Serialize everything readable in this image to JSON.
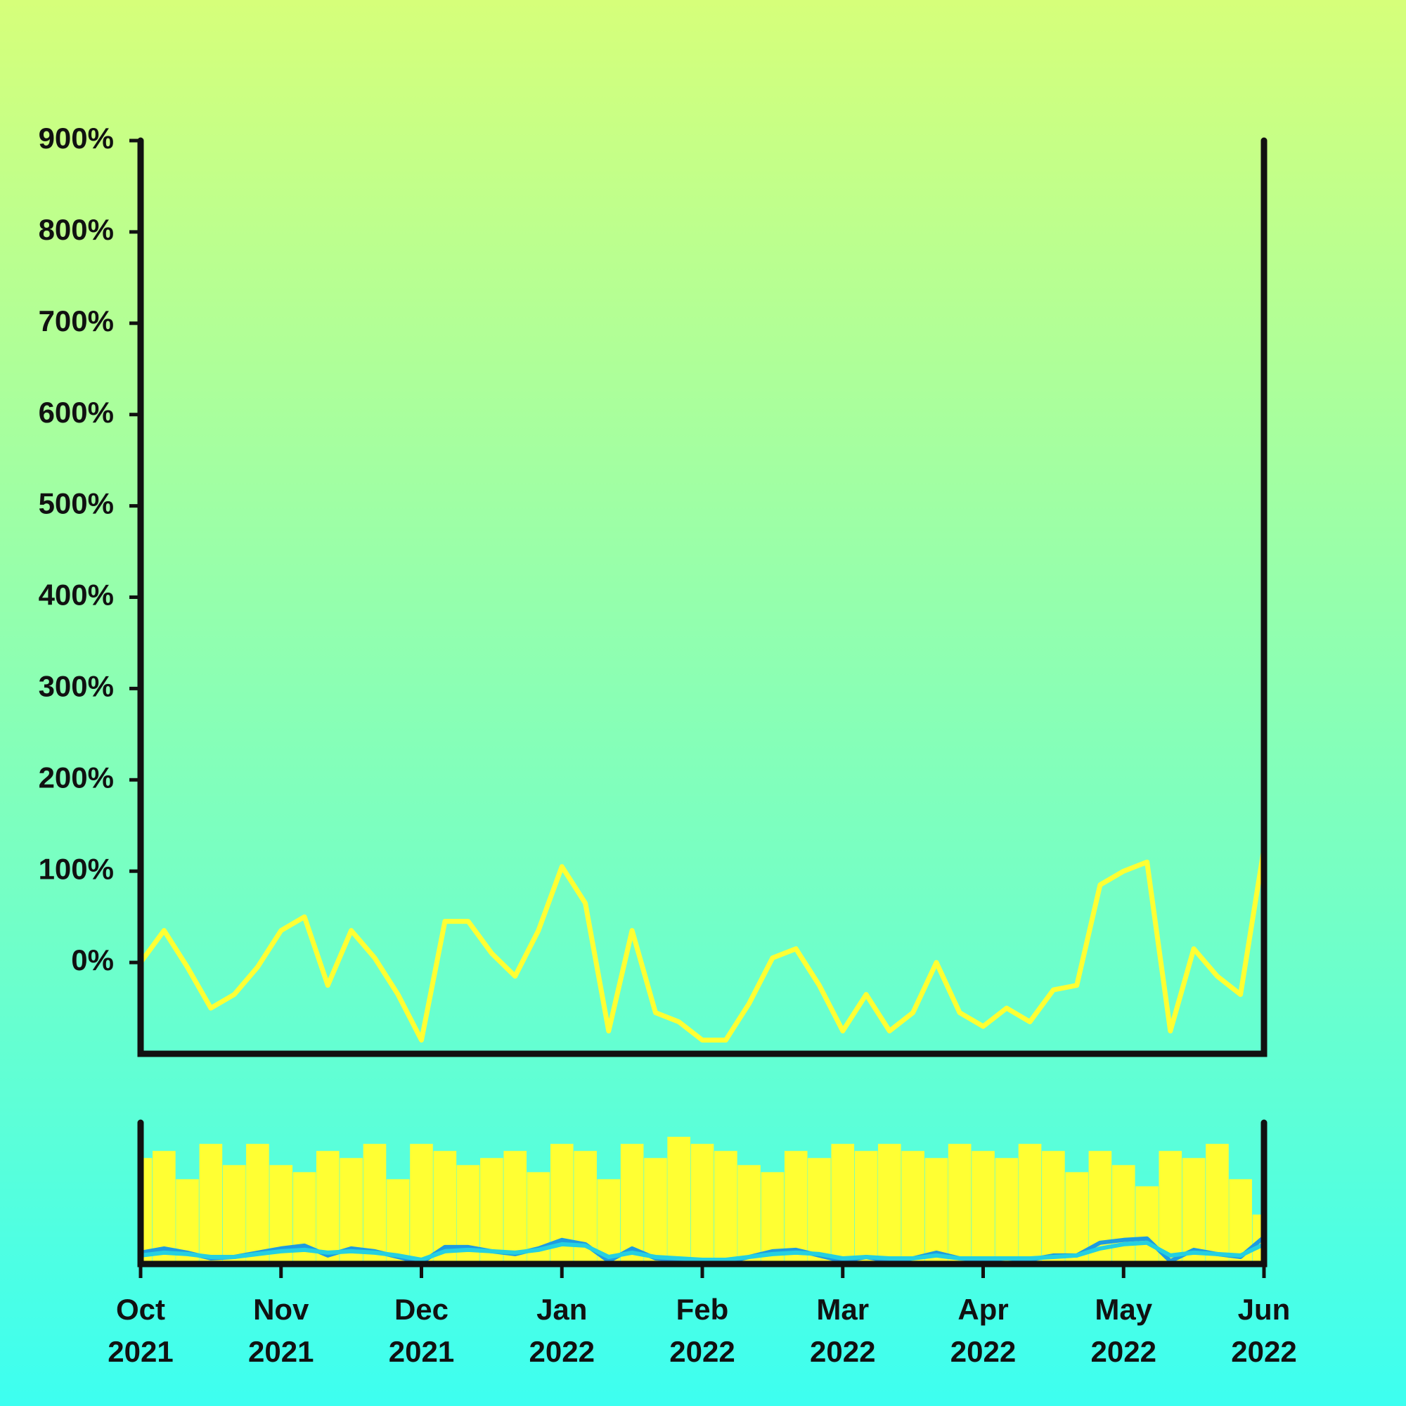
{
  "chart_data": [
    {
      "type": "line",
      "x": [
        0,
        0.167,
        0.333,
        0.5,
        0.667,
        0.833,
        1,
        1.167,
        1.333,
        1.5,
        1.667,
        1.833,
        2,
        2.167,
        2.333,
        2.5,
        2.667,
        2.833,
        3,
        3.167,
        3.333,
        3.5,
        3.667,
        3.833,
        4,
        4.167,
        4.333,
        4.5,
        4.667,
        4.833,
        5,
        5.167,
        5.333,
        5.5,
        5.667,
        5.833,
        6,
        6.167,
        6.333,
        6.5,
        6.667,
        6.833,
        7,
        7.167,
        7.333,
        7.5,
        7.667,
        7.833,
        8
      ],
      "values": [
        0,
        35,
        -5,
        -50,
        -35,
        -5,
        35,
        50,
        -25,
        35,
        5,
        -35,
        -85,
        45,
        45,
        10,
        -15,
        35,
        105,
        65,
        -75,
        35,
        -55,
        -65,
        -85,
        -85,
        -45,
        5,
        15,
        -25,
        -75,
        -35,
        -75,
        -55,
        0,
        -55,
        -70,
        -50,
        -65,
        -30,
        -25,
        85,
        100,
        110,
        -75,
        15,
        -15,
        -35,
        125
      ],
      "color": "#ffff33",
      "xlim": [
        0,
        8
      ],
      "ylim": [
        -100,
        900
      ],
      "yticks": [
        {
          "value": 0,
          "label": "0%"
        },
        {
          "value": 100,
          "label": "100%"
        },
        {
          "value": 200,
          "label": "200%"
        },
        {
          "value": 300,
          "label": "300%"
        },
        {
          "value": 400,
          "label": "400%"
        },
        {
          "value": 500,
          "label": "500%"
        },
        {
          "value": 600,
          "label": "600%"
        },
        {
          "value": 700,
          "label": "700%"
        },
        {
          "value": 800,
          "label": "800%"
        },
        {
          "value": 900,
          "label": "900%"
        }
      ],
      "grid": false
    },
    {
      "type": "bar",
      "x": [
        0,
        0.167,
        0.333,
        0.5,
        0.667,
        0.833,
        1,
        1.167,
        1.333,
        1.5,
        1.667,
        1.833,
        2,
        2.167,
        2.333,
        2.5,
        2.667,
        2.833,
        3,
        3.167,
        3.333,
        3.5,
        3.667,
        3.833,
        4,
        4.167,
        4.333,
        4.5,
        4.667,
        4.833,
        5,
        5.167,
        5.333,
        5.5,
        5.667,
        5.833,
        6,
        6.167,
        6.333,
        6.5,
        6.667,
        6.833,
        7,
        7.167,
        7.333,
        7.5,
        7.667,
        7.833,
        8
      ],
      "values": [
        75,
        80,
        60,
        85,
        70,
        85,
        70,
        65,
        80,
        75,
        85,
        60,
        85,
        80,
        70,
        75,
        80,
        65,
        85,
        80,
        60,
        85,
        75,
        90,
        85,
        80,
        70,
        65,
        80,
        75,
        85,
        80,
        85,
        80,
        75,
        85,
        80,
        75,
        85,
        80,
        65,
        80,
        70,
        55,
        80,
        75,
        85,
        60,
        35
      ],
      "color": "#ffff33",
      "lines": [
        {
          "color": "#1e9be0",
          "values": [
            8,
            11,
            8,
            4,
            5,
            8,
            11,
            13,
            6,
            11,
            9,
            5,
            1,
            12,
            12,
            9,
            7,
            11,
            17,
            14,
            2,
            11,
            4,
            3,
            1,
            1,
            5,
            9,
            10,
            6,
            2,
            5,
            2,
            4,
            8,
            4,
            3,
            4,
            3,
            6,
            6,
            15,
            17,
            18,
            2,
            10,
            7,
            5,
            19
          ]
        },
        {
          "color": "#25d0e0",
          "values": [
            6,
            8,
            7,
            5,
            5,
            7,
            9,
            10,
            8,
            9,
            8,
            6,
            3,
            9,
            10,
            9,
            8,
            10,
            14,
            13,
            5,
            8,
            5,
            4,
            3,
            3,
            5,
            7,
            8,
            7,
            4,
            5,
            4,
            4,
            6,
            4,
            4,
            4,
            4,
            5,
            6,
            11,
            14,
            15,
            6,
            8,
            7,
            6,
            14
          ]
        }
      ],
      "xlim": [
        0,
        8
      ],
      "ylim": [
        0,
        100
      ],
      "xticks": [
        {
          "value": 0,
          "label": "Oct 2021"
        },
        {
          "value": 1,
          "label": "Nov 2021"
        },
        {
          "value": 2,
          "label": "Dec 2021"
        },
        {
          "value": 3,
          "label": "Jan 2022"
        },
        {
          "value": 4,
          "label": "Feb 2022"
        },
        {
          "value": 5,
          "label": "Mar 2022"
        },
        {
          "value": 6,
          "label": "Apr 2022"
        },
        {
          "value": 7,
          "label": "May 2022"
        },
        {
          "value": 8,
          "label": "Jun 2022"
        }
      ]
    }
  ]
}
